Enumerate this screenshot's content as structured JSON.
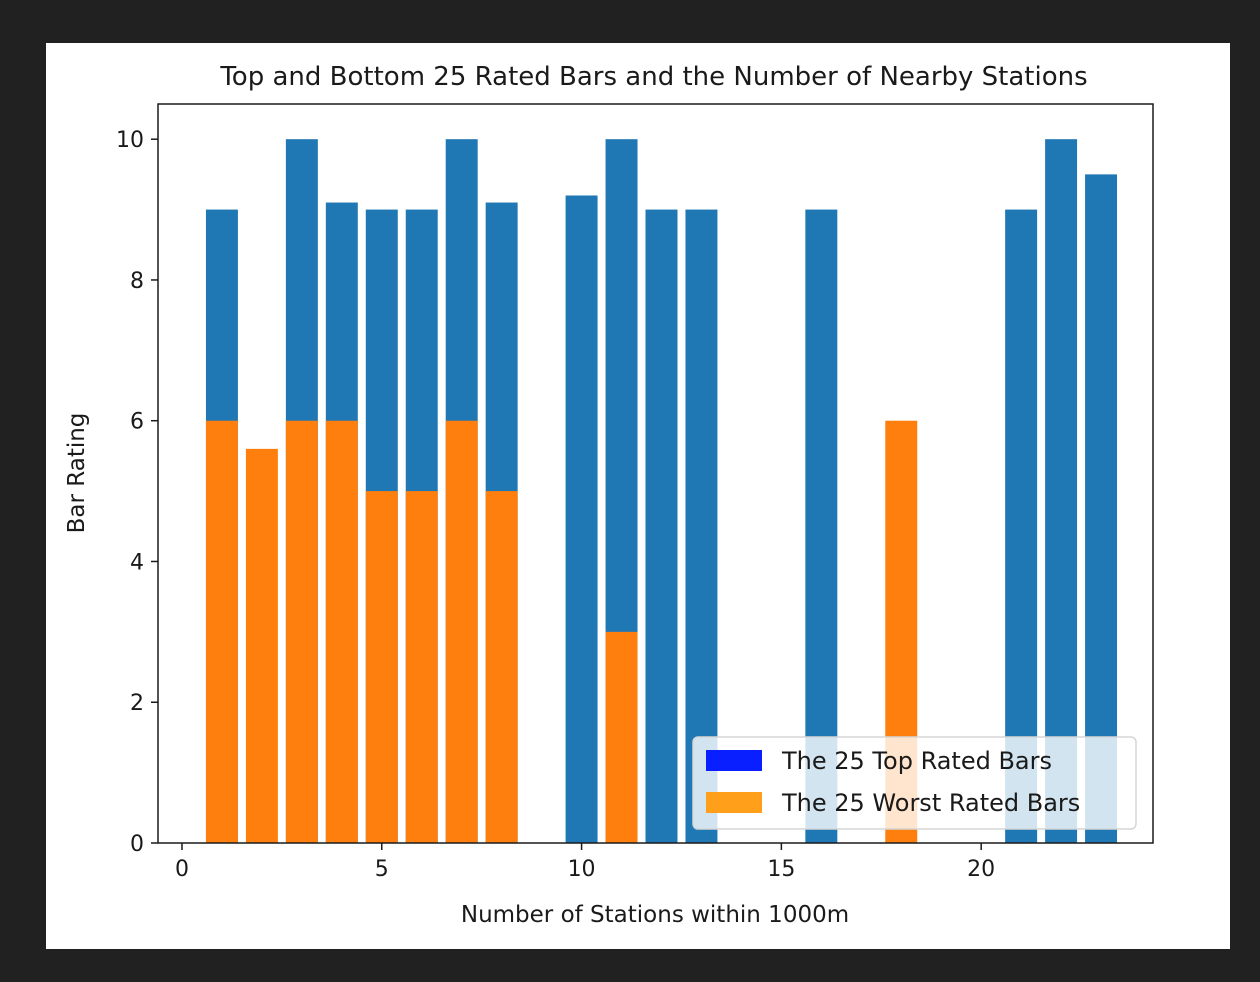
{
  "chart_data": {
    "type": "bar",
    "title": "Top and Bottom 25 Rated Bars and the Number of Nearby Stations",
    "xlabel": "Number of Stations within 1000m",
    "ylabel": "Bar Rating",
    "xlim": [
      -0.6,
      24.3
    ],
    "ylim": [
      0,
      10.5
    ],
    "xticks": [
      0,
      5,
      10,
      15,
      20
    ],
    "yticks": [
      0,
      2,
      4,
      6,
      8,
      10
    ],
    "grid": false,
    "legend_position": "lower right",
    "series": [
      {
        "name": "The 25 Top Rated Bars",
        "color": "#1f77b4",
        "legend_color": "#0a1fff",
        "x": [
          1,
          3,
          4,
          5,
          6,
          7,
          8,
          10,
          11,
          12,
          13,
          16,
          21,
          22,
          23
        ],
        "values": [
          9.0,
          10.0,
          9.1,
          9.0,
          9.0,
          10.0,
          9.1,
          9.2,
          10.0,
          9.0,
          9.0,
          9.0,
          9.0,
          10.0,
          9.5
        ]
      },
      {
        "name": "The 25 Worst Rated Bars",
        "color": "#ff7f0e",
        "legend_color": "#ff9f1a",
        "x": [
          1,
          2,
          3,
          4,
          5,
          6,
          7,
          8,
          11,
          18
        ],
        "values": [
          6.0,
          5.6,
          6.0,
          6.0,
          5.0,
          5.0,
          6.0,
          5.0,
          3.0,
          6.0
        ]
      }
    ]
  }
}
